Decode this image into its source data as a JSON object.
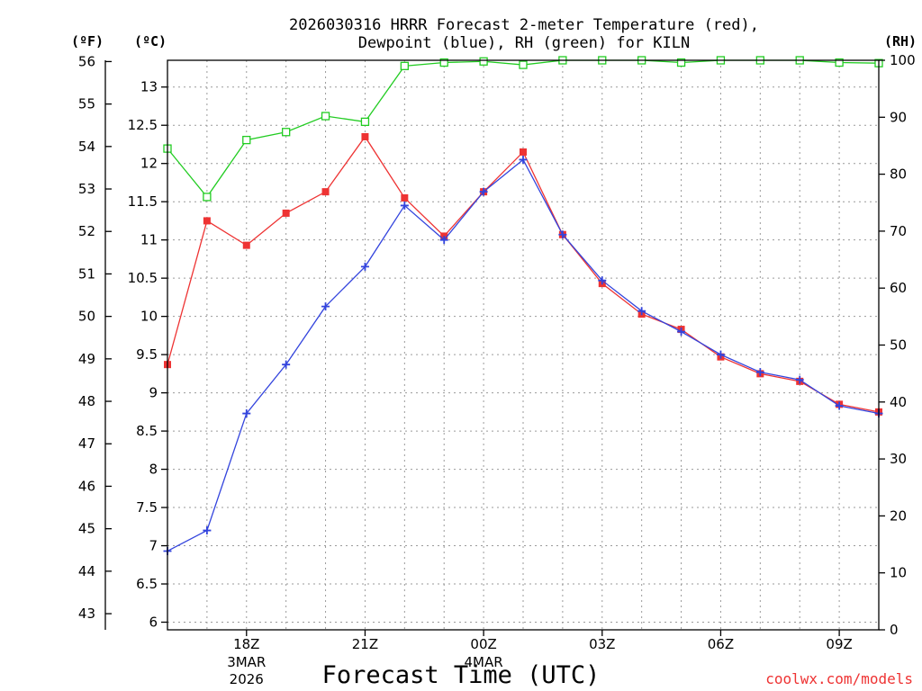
{
  "chart_data": {
    "type": "line",
    "title_line1": "2026030316 HRRR Forecast 2-meter Temperature (red),",
    "title_line2": "Dewpoint (blue), RH (green) for KILN",
    "xlabel": "Forecast Time (UTC)",
    "left_outer_label": "(ºF)",
    "left_inner_label": "(ºC)",
    "right_label": "(RH)",
    "credit": "coolwx.com/models",
    "x_hours": [
      16,
      17,
      18,
      19,
      20,
      21,
      22,
      23,
      24,
      25,
      26,
      27,
      28,
      29,
      30,
      31,
      32,
      33,
      34
    ],
    "x_range": [
      16,
      34
    ],
    "x_ticks": [
      {
        "hour": 18,
        "label": "18Z",
        "sub1": "3MAR",
        "sub2": "2026"
      },
      {
        "hour": 21,
        "label": "21Z",
        "sub1": "",
        "sub2": ""
      },
      {
        "hour": 24,
        "label": "00Z",
        "sub1": "4MAR",
        "sub2": ""
      },
      {
        "hour": 27,
        "label": "03Z",
        "sub1": "",
        "sub2": ""
      },
      {
        "hour": 30,
        "label": "06Z",
        "sub1": "",
        "sub2": ""
      },
      {
        "hour": 33,
        "label": "09Z",
        "sub1": "",
        "sub2": ""
      }
    ],
    "c_range": [
      5.9,
      13.35
    ],
    "c_ticks": [
      "6",
      "6.5",
      "7",
      "7.5",
      "8",
      "8.5",
      "9",
      "9.5",
      "10",
      "10.5",
      "11",
      "11.5",
      "12",
      "12.5",
      "13"
    ],
    "f_ticks": [
      "43",
      "44",
      "45",
      "46",
      "47",
      "48",
      "49",
      "50",
      "51",
      "52",
      "53",
      "54",
      "55",
      "56"
    ],
    "rh_range": [
      0,
      100
    ],
    "rh_ticks": [
      "0",
      "10",
      "20",
      "30",
      "40",
      "50",
      "60",
      "70",
      "80",
      "90",
      "100"
    ],
    "series": [
      {
        "name": "Temperature",
        "unit": "C",
        "color": "#ee3333",
        "marker": "square",
        "values": [
          9.37,
          11.25,
          10.93,
          11.35,
          11.63,
          12.35,
          11.55,
          11.05,
          11.63,
          12.15,
          11.07,
          10.43,
          10.03,
          9.83,
          9.47,
          9.25,
          9.15,
          8.85,
          8.75
        ]
      },
      {
        "name": "Dewpoint",
        "unit": "C",
        "color": "#3344dd",
        "marker": "plus",
        "values": [
          6.93,
          7.2,
          8.73,
          9.37,
          10.13,
          10.65,
          11.45,
          11.0,
          11.63,
          12.05,
          11.07,
          10.47,
          10.07,
          9.8,
          9.5,
          9.27,
          9.17,
          8.83,
          8.73
        ]
      },
      {
        "name": "RH",
        "unit": "%",
        "color": "#22cc22",
        "marker": "open-square",
        "values": [
          84.5,
          76,
          86,
          87.4,
          90.2,
          89.2,
          99,
          99.6,
          99.8,
          99.2,
          100,
          100,
          100,
          99.6,
          100,
          100,
          100,
          99.6,
          99.5
        ]
      }
    ]
  }
}
